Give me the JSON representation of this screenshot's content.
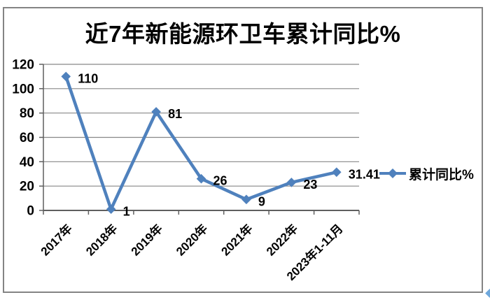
{
  "title": "近7年新能源环卫车累计同比%",
  "legend": {
    "label": "累计同比%"
  },
  "chart_data": {
    "type": "line",
    "title": "近7年新能源环卫车累计同比%",
    "categories": [
      "2017年",
      "2018年",
      "2019年",
      "2020年",
      "2021年",
      "2022年",
      "2023年1-11月"
    ],
    "series": [
      {
        "name": "累计同比%",
        "values": [
          110,
          1,
          81,
          26,
          9,
          23,
          31.41
        ]
      }
    ],
    "data_labels": [
      "110",
      "1",
      "81",
      "26",
      "9",
      "23",
      "31.41"
    ],
    "xlabel": "",
    "ylabel": "",
    "ylim": [
      0,
      120
    ],
    "yticks": [
      0,
      20,
      40,
      60,
      80,
      100,
      120
    ],
    "grid": true,
    "marker": "diamond",
    "legend_position": "right-middle",
    "colors": {
      "series": "#4F81BD",
      "gridline": "#878787",
      "axis": "#5f5f5f",
      "text": "#000000",
      "frame_border": "#848484",
      "corner_diamond": "#6FA8DC",
      "background": "#FFFFFF"
    }
  }
}
